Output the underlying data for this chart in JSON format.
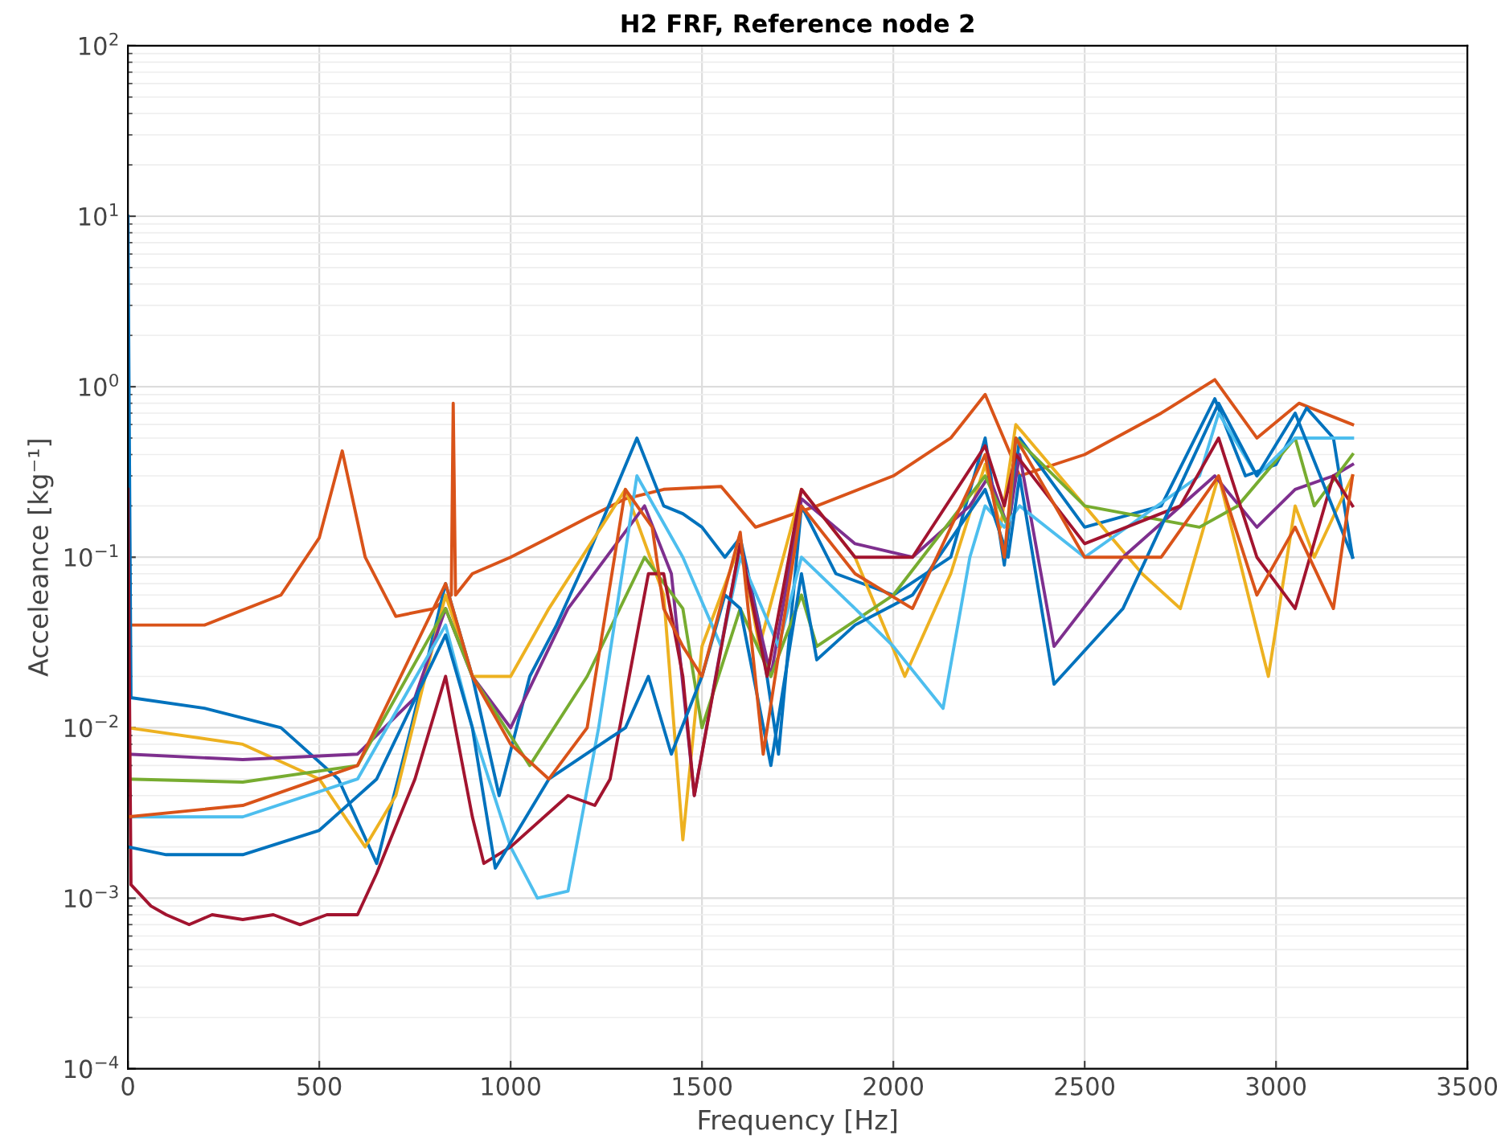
{
  "chart_data": {
    "type": "line",
    "title": "H2 FRF, Reference node 2",
    "xlabel": "Frequency [Hz]",
    "ylabel": "Acceleance [kg⁻¹]",
    "log": "y",
    "grid": true,
    "xlim": [
      0,
      3500
    ],
    "xticks": [
      0,
      500,
      1000,
      1500,
      2000,
      2500,
      3000,
      3500
    ],
    "ylim": [
      0.0001,
      100
    ],
    "yticks": [
      {
        "value": 0.0001,
        "label": "10$^{−4}$"
      },
      {
        "value": 0.001,
        "label": "10$^{−3}$"
      },
      {
        "value": 0.01,
        "label": "10$^{−2}$"
      },
      {
        "value": 0.1,
        "label": "10$^{−1}$"
      },
      {
        "value": 1,
        "label": "10$^{0}$"
      },
      {
        "value": 10,
        "label": "10$^{1}$"
      },
      {
        "value": 100,
        "label": "10$^{2}$"
      }
    ],
    "series": [
      {
        "color": "#d95319",
        "x": [
          0,
          200,
          400,
          500,
          560,
          620,
          700,
          800,
          845,
          850,
          856,
          900,
          1000,
          1100,
          1200,
          1300,
          1400,
          1550,
          1640,
          1800,
          2000,
          2150,
          2240,
          2330,
          2500,
          2700,
          2840,
          2950,
          3060,
          3200
        ],
        "values": [
          0.04,
          0.04,
          0.06,
          0.13,
          0.42,
          0.1,
          0.045,
          0.05,
          0.06,
          0.8,
          0.06,
          0.08,
          0.1,
          0.13,
          0.17,
          0.22,
          0.25,
          0.26,
          0.15,
          0.2,
          0.3,
          0.5,
          0.9,
          0.3,
          0.4,
          0.7,
          1.1,
          0.5,
          0.8,
          0.6
        ]
      },
      {
        "color": "#0072bd",
        "x": [
          0,
          8,
          200,
          400,
          550,
          650,
          740,
          830,
          900,
          970,
          1050,
          1120,
          1200,
          1330,
          1400,
          1450,
          1500,
          1560,
          1600,
          1650,
          1700,
          1760,
          1850,
          2000,
          2150,
          2240,
          2290,
          2330,
          2500,
          2700,
          2840,
          2920,
          3000,
          3080,
          3150,
          3200
        ],
        "values": [
          10,
          0.015,
          0.013,
          0.01,
          0.005,
          0.0016,
          0.01,
          0.07,
          0.02,
          0.004,
          0.02,
          0.04,
          0.1,
          0.5,
          0.2,
          0.18,
          0.15,
          0.1,
          0.13,
          0.04,
          0.007,
          0.2,
          0.08,
          0.06,
          0.1,
          0.5,
          0.09,
          0.5,
          0.15,
          0.2,
          0.85,
          0.3,
          0.35,
          0.75,
          0.5,
          0.1
        ]
      },
      {
        "color": "#edb120",
        "x": [
          0,
          300,
          500,
          620,
          700,
          830,
          900,
          1000,
          1100,
          1300,
          1400,
          1450,
          1500,
          1600,
          1650,
          1760,
          1900,
          2030,
          2150,
          2240,
          2280,
          2320,
          2500,
          2650,
          2750,
          2850,
          2980,
          3050,
          3100,
          3200
        ],
        "values": [
          0.01,
          0.008,
          0.005,
          0.002,
          0.004,
          0.06,
          0.02,
          0.02,
          0.05,
          0.25,
          0.06,
          0.0022,
          0.03,
          0.12,
          0.03,
          0.25,
          0.1,
          0.02,
          0.08,
          0.35,
          0.15,
          0.6,
          0.2,
          0.08,
          0.05,
          0.3,
          0.02,
          0.2,
          0.1,
          0.3
        ]
      },
      {
        "color": "#7e2f8e",
        "x": [
          0,
          300,
          600,
          750,
          830,
          900,
          1000,
          1150,
          1350,
          1420,
          1480,
          1550,
          1600,
          1680,
          1760,
          1900,
          2050,
          2200,
          2250,
          2300,
          2330,
          2420,
          2600,
          2840,
          2950,
          3050,
          3150,
          3200
        ],
        "values": [
          0.007,
          0.0065,
          0.007,
          0.015,
          0.05,
          0.02,
          0.01,
          0.05,
          0.2,
          0.08,
          0.004,
          0.03,
          0.12,
          0.02,
          0.22,
          0.12,
          0.1,
          0.2,
          0.3,
          0.15,
          0.4,
          0.03,
          0.1,
          0.3,
          0.15,
          0.25,
          0.3,
          0.35
        ]
      },
      {
        "color": "#77ac30",
        "x": [
          0,
          300,
          600,
          830,
          900,
          1050,
          1200,
          1350,
          1450,
          1500,
          1600,
          1680,
          1760,
          1800,
          2000,
          2240,
          2300,
          2320,
          2500,
          2800,
          2900,
          3050,
          3100,
          3200
        ],
        "values": [
          0.005,
          0.0048,
          0.006,
          0.05,
          0.02,
          0.006,
          0.02,
          0.1,
          0.05,
          0.01,
          0.05,
          0.02,
          0.06,
          0.03,
          0.06,
          0.3,
          0.15,
          0.5,
          0.2,
          0.15,
          0.2,
          0.5,
          0.2,
          0.4
        ]
      },
      {
        "color": "#4dbeee",
        "x": [
          0,
          300,
          600,
          830,
          900,
          1000,
          1070,
          1150,
          1230,
          1330,
          1450,
          1550,
          1600,
          1700,
          1760,
          1900,
          2000,
          2130,
          2200,
          2240,
          2290,
          2330,
          2500,
          2800,
          2850,
          2950,
          3050,
          3200
        ],
        "values": [
          0.003,
          0.003,
          0.005,
          0.04,
          0.01,
          0.002,
          0.001,
          0.0011,
          0.01,
          0.3,
          0.1,
          0.03,
          0.1,
          0.03,
          0.1,
          0.05,
          0.03,
          0.013,
          0.1,
          0.2,
          0.15,
          0.2,
          0.1,
          0.3,
          0.7,
          0.3,
          0.5,
          0.5
        ]
      },
      {
        "color": "#a2142f",
        "x": [
          0,
          8,
          60,
          100,
          160,
          220,
          300,
          380,
          450,
          520,
          600,
          650,
          750,
          830,
          900,
          930,
          1000,
          1150,
          1220,
          1260,
          1360,
          1400,
          1450,
          1480,
          1600,
          1670,
          1760,
          1900,
          2050,
          2240,
          2290,
          2320,
          2500,
          2750,
          2850,
          2950,
          3050,
          3150,
          3200
        ],
        "values": [
          0.25,
          0.0012,
          0.0009,
          0.0008,
          0.0007,
          0.0008,
          0.00075,
          0.0008,
          0.0007,
          0.0008,
          0.0008,
          0.0014,
          0.005,
          0.02,
          0.003,
          0.0016,
          0.002,
          0.004,
          0.0035,
          0.005,
          0.08,
          0.08,
          0.02,
          0.004,
          0.12,
          0.02,
          0.25,
          0.1,
          0.1,
          0.45,
          0.2,
          0.4,
          0.12,
          0.2,
          0.5,
          0.1,
          0.05,
          0.3,
          0.2
        ]
      },
      {
        "color": "#0072bd",
        "x": [
          0,
          100,
          300,
          500,
          650,
          830,
          900,
          960,
          1100,
          1300,
          1360,
          1420,
          1500,
          1560,
          1600,
          1680,
          1760,
          1800,
          1900,
          2050,
          2240,
          2300,
          2330,
          2420,
          2600,
          2850,
          2950,
          3050,
          3200
        ],
        "values": [
          0.002,
          0.0018,
          0.0018,
          0.0025,
          0.005,
          0.035,
          0.01,
          0.0015,
          0.005,
          0.01,
          0.02,
          0.007,
          0.02,
          0.06,
          0.05,
          0.006,
          0.08,
          0.025,
          0.04,
          0.06,
          0.25,
          0.1,
          0.3,
          0.018,
          0.05,
          0.8,
          0.3,
          0.7,
          0.1
        ]
      },
      {
        "color": "#d95319",
        "x": [
          0,
          300,
          600,
          830,
          900,
          1000,
          1100,
          1200,
          1300,
          1370,
          1400,
          1450,
          1500,
          1600,
          1660,
          1760,
          1900,
          2050,
          2240,
          2290,
          2320,
          2500,
          2700,
          2850,
          2950,
          3050,
          3150,
          3200
        ],
        "values": [
          0.003,
          0.0035,
          0.006,
          0.07,
          0.02,
          0.008,
          0.005,
          0.01,
          0.25,
          0.15,
          0.05,
          0.03,
          0.02,
          0.14,
          0.007,
          0.2,
          0.08,
          0.05,
          0.4,
          0.1,
          0.5,
          0.1,
          0.1,
          0.3,
          0.06,
          0.15,
          0.05,
          0.3
        ]
      }
    ]
  }
}
